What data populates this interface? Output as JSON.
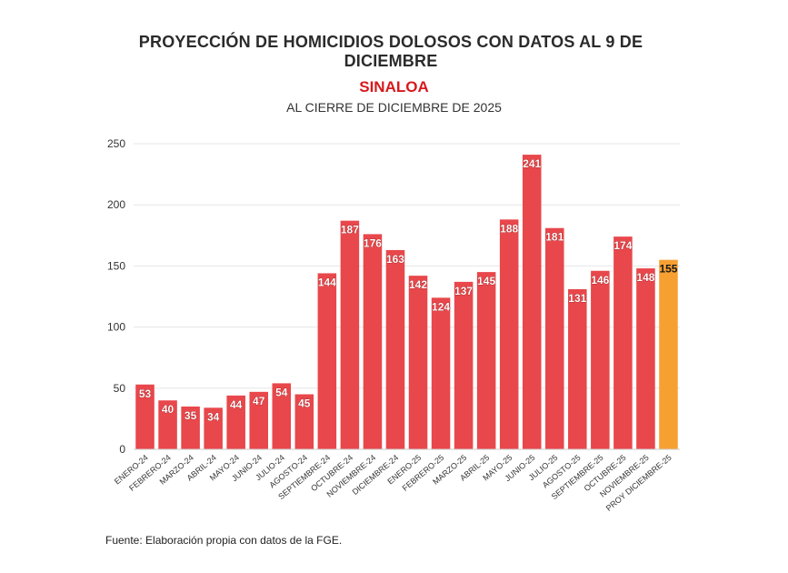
{
  "header": {
    "title": "PROYECCIÓN DE HOMICIDIOS DOLOSOS CON DATOS AL 9 DE DICIEMBRE",
    "subtitle": "SINALOA",
    "subtitle2": "AL CIERRE DE DICIEMBRE DE 2025"
  },
  "footer": {
    "source": "Fuente: Elaboración propia con datos de la FGE."
  },
  "colors": {
    "bar": "#e8474b",
    "projection_bar": "#f7a032",
    "subtitle": "#d7191c",
    "grid": "#e6e6e6"
  },
  "chart_data": {
    "type": "bar",
    "title": "PROYECCIÓN DE HOMICIDIOS DOLOSOS CON DATOS AL 9 DE DICIEMBRE",
    "xlabel": "",
    "ylabel": "",
    "ylim": [
      0,
      250
    ],
    "yticks": [
      0,
      50,
      100,
      150,
      200,
      250
    ],
    "grid": true,
    "categories": [
      "ENERO-24",
      "FEBRERO-24",
      "MARZO-24",
      "ABRIL-24",
      "MAYO-24",
      "JUNIO-24",
      "JULIO-24",
      "AGOSTO-24",
      "SEPTIEMBRE-24",
      "OCTUBRE-24",
      "NOVIEMBRE-24",
      "DICIEMBRE-24",
      "ENERO-25",
      "FEBRERO-25",
      "MARZO-25",
      "ABRIL-25",
      "MAYO-25",
      "JUNIO-25",
      "JULIO-25",
      "AGOSTO-25",
      "SEPTIEMBRE-25",
      "OCTUBRE-25",
      "NOVIEMBRE-25",
      "PROY DICIEMBRE-25"
    ],
    "values": [
      53,
      40,
      35,
      34,
      44,
      47,
      54,
      45,
      144,
      187,
      176,
      163,
      142,
      124,
      137,
      145,
      188,
      241,
      181,
      131,
      146,
      174,
      148,
      155
    ],
    "highlight_index": 23
  }
}
